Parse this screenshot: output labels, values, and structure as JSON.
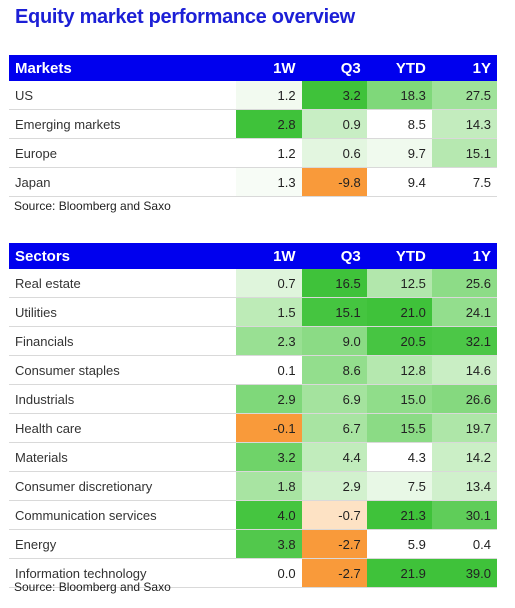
{
  "title": "Equity market performance overview",
  "markets": {
    "headers": [
      "Markets",
      "1W",
      "Q3",
      "YTD",
      "1Y"
    ],
    "rows": [
      {
        "label": "US",
        "values": [
          "1.2",
          "3.2",
          "18.3",
          "27.5"
        ],
        "colors": [
          "#f2faf0",
          "#3fc23a",
          "#7fd87a",
          "#9fe29a"
        ]
      },
      {
        "label": "Emerging markets",
        "values": [
          "2.8",
          "0.9",
          "8.5",
          "14.3"
        ],
        "colors": [
          "#3fc23a",
          "#c8eec4",
          "#ffffff",
          "#c3ecbe"
        ]
      },
      {
        "label": "Europe",
        "values": [
          "1.2",
          "0.6",
          "9.7",
          "15.1"
        ],
        "colors": [
          "#ffffff",
          "#e3f6e0",
          "#f0faee",
          "#b6e8b0"
        ]
      },
      {
        "label": "Japan",
        "values": [
          "1.3",
          "-9.8",
          "9.4",
          "7.5"
        ],
        "colors": [
          "#f7fcf6",
          "#f99a3a",
          "#ffffff",
          "#ffffff"
        ]
      }
    ],
    "source": "Source: Bloomberg and Saxo"
  },
  "sectors": {
    "headers": [
      "Sectors",
      "1W",
      "Q3",
      "YTD",
      "1Y"
    ],
    "rows": [
      {
        "label": "Real estate",
        "values": [
          "0.7",
          "16.5",
          "12.5",
          "25.6"
        ],
        "colors": [
          "#dff5dc",
          "#3fc23a",
          "#b2e7ac",
          "#8ddc87"
        ]
      },
      {
        "label": "Utilities",
        "values": [
          "1.5",
          "15.1",
          "21.0",
          "24.1"
        ],
        "colors": [
          "#bdebb7",
          "#45c540",
          "#3fc23a",
          "#93de8d"
        ]
      },
      {
        "label": "Financials",
        "values": [
          "2.3",
          "9.0",
          "20.5",
          "32.1"
        ],
        "colors": [
          "#99e093",
          "#8bdb85",
          "#47c542",
          "#4cc747"
        ]
      },
      {
        "label": "Consumer staples",
        "values": [
          "0.1",
          "8.6",
          "12.8",
          "14.6"
        ],
        "colors": [
          "#ffffff",
          "#93de8d",
          "#b5e8af",
          "#c9eec4"
        ]
      },
      {
        "label": "Industrials",
        "values": [
          "2.9",
          "6.9",
          "15.0",
          "26.6"
        ],
        "colors": [
          "#7fd87a",
          "#a4e39e",
          "#90dd8a",
          "#85d97f"
        ]
      },
      {
        "label": "Health care",
        "values": [
          "-0.1",
          "6.7",
          "15.5",
          "19.7"
        ],
        "colors": [
          "#f99a3a",
          "#a8e4a2",
          "#8bdb85",
          "#aee6a8"
        ]
      },
      {
        "label": "Materials",
        "values": [
          "3.2",
          "4.4",
          "4.3",
          "14.2"
        ],
        "colors": [
          "#6fd369",
          "#c1ecbc",
          "#ffffff",
          "#cbefc6"
        ]
      },
      {
        "label": "Consumer discretionary",
        "values": [
          "1.8",
          "2.9",
          "7.5",
          "13.4"
        ],
        "colors": [
          "#a8e4a2",
          "#d2f1ce",
          "#e8f8e6",
          "#d0f0cc"
        ]
      },
      {
        "label": "Communication services",
        "values": [
          "4.0",
          "-0.7",
          "21.3",
          "30.1"
        ],
        "colors": [
          "#45c540",
          "#fde2c4",
          "#3fc23a",
          "#5fcd59"
        ]
      },
      {
        "label": "Energy",
        "values": [
          "3.8",
          "-2.7",
          "5.9",
          "0.4"
        ],
        "colors": [
          "#52c84c",
          "#f99a3a",
          "#ffffff",
          "#ffffff"
        ]
      },
      {
        "label": "Information technology",
        "values": [
          "0.0",
          "-2.7",
          "21.9",
          "39.0"
        ],
        "colors": [
          "#ffffff",
          "#f99a3a",
          "#3fc23a",
          "#3fc23a"
        ]
      }
    ],
    "source": "Source: Bloomberg and Saxo"
  },
  "chart_data": {
    "type": "table",
    "title": "Equity market performance overview",
    "tables": [
      {
        "columns": [
          "Markets",
          "1W",
          "Q3",
          "YTD",
          "1Y"
        ],
        "rows": [
          [
            "US",
            1.2,
            3.2,
            18.3,
            27.5
          ],
          [
            "Emerging markets",
            2.8,
            0.9,
            8.5,
            14.3
          ],
          [
            "Europe",
            1.2,
            0.6,
            9.7,
            15.1
          ],
          [
            "Japan",
            1.3,
            -9.8,
            9.4,
            7.5
          ]
        ]
      },
      {
        "columns": [
          "Sectors",
          "1W",
          "Q3",
          "YTD",
          "1Y"
        ],
        "rows": [
          [
            "Real estate",
            0.7,
            16.5,
            12.5,
            25.6
          ],
          [
            "Utilities",
            1.5,
            15.1,
            21.0,
            24.1
          ],
          [
            "Financials",
            2.3,
            9.0,
            20.5,
            32.1
          ],
          [
            "Consumer staples",
            0.1,
            8.6,
            12.8,
            14.6
          ],
          [
            "Industrials",
            2.9,
            6.9,
            15.0,
            26.6
          ],
          [
            "Health care",
            -0.1,
            6.7,
            15.5,
            19.7
          ],
          [
            "Materials",
            3.2,
            4.4,
            4.3,
            14.2
          ],
          [
            "Consumer discretionary",
            1.8,
            2.9,
            7.5,
            13.4
          ],
          [
            "Communication services",
            4.0,
            -0.7,
            21.3,
            30.1
          ],
          [
            "Energy",
            3.8,
            -2.7,
            5.9,
            0.4
          ],
          [
            "Information technology",
            0.0,
            -2.7,
            21.9,
            39.0
          ]
        ]
      }
    ],
    "grid": true
  }
}
